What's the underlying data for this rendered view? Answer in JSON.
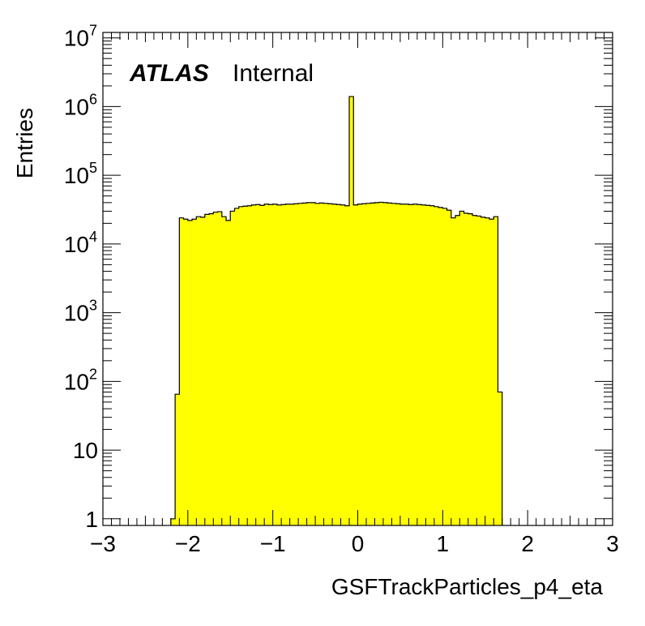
{
  "chart_data": {
    "type": "bar",
    "title": "",
    "xlabel": "GSFTrackParticles_p4_eta",
    "ylabel": "Entries",
    "xlim": [
      -3,
      3
    ],
    "ylim": [
      0.8,
      12000000
    ],
    "yscale": "log",
    "grid": false,
    "legend": "none",
    "annotation": {
      "experiment": "ATLAS",
      "status": "Internal"
    },
    "x_ticks": [
      {
        "value": -3,
        "label": "−3"
      },
      {
        "value": -2,
        "label": "−2"
      },
      {
        "value": -1,
        "label": "−1"
      },
      {
        "value": 0,
        "label": "0"
      },
      {
        "value": 1,
        "label": "1"
      },
      {
        "value": 2,
        "label": "2"
      },
      {
        "value": 3,
        "label": "3"
      }
    ],
    "y_ticks": [
      {
        "value": 1,
        "base": "1",
        "exp": ""
      },
      {
        "value": 10,
        "base": "10",
        "exp": ""
      },
      {
        "value": 100,
        "base": "10",
        "exp": "2"
      },
      {
        "value": 1000,
        "base": "10",
        "exp": "3"
      },
      {
        "value": 10000,
        "base": "10",
        "exp": "4"
      },
      {
        "value": 100000,
        "base": "10",
        "exp": "5"
      },
      {
        "value": 1000000,
        "base": "10",
        "exp": "6"
      },
      {
        "value": 10000000,
        "base": "10",
        "exp": "7"
      }
    ],
    "bin_width": 0.05,
    "bin_start": -2.2,
    "values": [
      1,
      65,
      24000,
      23000,
      22000,
      23000,
      25000,
      24500,
      27000,
      27500,
      29000,
      29500,
      25000,
      22000,
      30000,
      33000,
      35000,
      35500,
      36000,
      37000,
      37500,
      36500,
      38000,
      37500,
      38000,
      37000,
      37500,
      38000,
      38000,
      38500,
      39000,
      39500,
      40000,
      40000,
      39000,
      39500,
      39000,
      38500,
      38000,
      37500,
      37000,
      36000,
      1400000,
      37000,
      38000,
      38500,
      39000,
      39500,
      40000,
      40500,
      40000,
      39500,
      39000,
      38500,
      38000,
      38000,
      37500,
      38000,
      37500,
      37000,
      36500,
      36000,
      35000,
      34000,
      33000,
      31000,
      24000,
      26000,
      30000,
      28000,
      27500,
      26000,
      25500,
      24500,
      24000,
      23000,
      25000,
      70
    ],
    "colors": {
      "fill": "#ffff00",
      "line": "#000000"
    }
  }
}
